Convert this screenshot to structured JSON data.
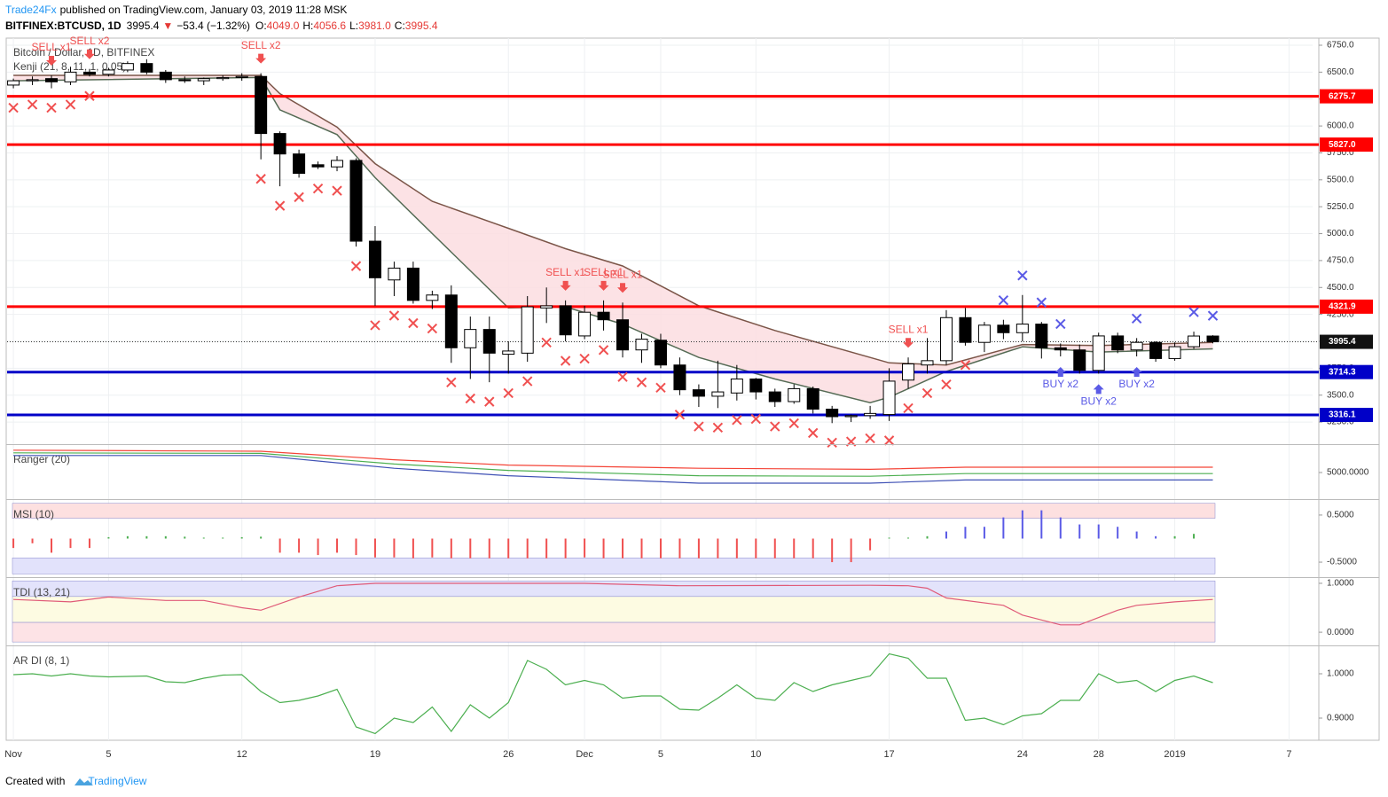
{
  "header": {
    "author": "Trade24Fx",
    "published": "published on TradingView.com, January 03, 2019 11:28 MSK",
    "symbol": "BITFINEX:BTCUSD, 1D",
    "last": "3995.4",
    "arrow": "▼",
    "change": "−53.4 (−1.32%)",
    "o_label": "O:",
    "o": "4049.0",
    "h_label": "H:",
    "h": "4056.6",
    "l_label": "L:",
    "l": "3981.0",
    "c_label": "C:",
    "c": "3995.4"
  },
  "footer": {
    "created": "Created with",
    "brand": "TradingView"
  },
  "chart_data": [
    {
      "type": "candlestick",
      "title": "Bitcoin / Dollar, 1D, BITFINEX",
      "indicator": "Kenji (21, 8, 11, 1, 0.05)",
      "xlim": [
        -0.33,
        68.24
      ],
      "xticks": [
        {
          "value": 0,
          "label": "Nov"
        },
        5,
        12,
        19,
        26,
        {
          "value": 30,
          "label": "Dec"
        },
        {
          "value": 34,
          "label": "5"
        },
        {
          "value": 39,
          "label": "10"
        },
        {
          "value": 46,
          "label": "17"
        },
        {
          "value": 53,
          "label": "24"
        },
        {
          "value": 57,
          "label": "28"
        },
        {
          "value": 61,
          "label": "2019"
        },
        {
          "value": 67,
          "label": "7"
        }
      ],
      "ylim": [
        3053,
        6816
      ],
      "yticks": [
        {
          "value": 6750,
          "label": "6750.0"
        },
        {
          "value": 6500,
          "label": "6500.0"
        },
        {
          "value": 6250,
          "label": "6250.0"
        },
        {
          "value": 6000,
          "label": "6000.0"
        },
        {
          "value": 5750,
          "label": "5750.0"
        },
        {
          "value": 5500,
          "label": "5500.0"
        },
        {
          "value": 5250,
          "label": "5250.0"
        },
        {
          "value": 5000,
          "label": "5000.0"
        },
        {
          "value": 4750,
          "label": "4750.0"
        },
        {
          "value": 4500,
          "label": "4500.0"
        },
        {
          "value": 4250,
          "label": "4250.0"
        },
        {
          "value": 4000,
          "label": "4000.0"
        },
        {
          "value": 3750,
          "label": "3750.0"
        },
        {
          "value": 3500,
          "label": "3500.0"
        },
        {
          "value": 3250,
          "label": "3250.0"
        }
      ],
      "grid": true,
      "colors": {
        "up": "#ffffff",
        "down": "#000000"
      },
      "ohlc": [
        [
          6380,
          6440,
          6350,
          6420
        ],
        [
          6420,
          6460,
          6380,
          6430
        ],
        [
          6440,
          6470,
          6350,
          6410
        ],
        [
          6410,
          6550,
          6380,
          6500
        ],
        [
          6500,
          6530,
          6460,
          6480
        ],
        [
          6480,
          6540,
          6460,
          6520
        ],
        [
          6520,
          6600,
          6500,
          6580
        ],
        [
          6580,
          6620,
          6480,
          6500
        ],
        [
          6500,
          6520,
          6400,
          6430
        ],
        [
          6430,
          6460,
          6400,
          6420
        ],
        [
          6420,
          6450,
          6380,
          6440
        ],
        [
          6440,
          6470,
          6420,
          6450
        ],
        [
          6450,
          6490,
          6420,
          6460
        ],
        [
          6460,
          6490,
          5690,
          5930
        ],
        [
          5930,
          5950,
          5440,
          5740
        ],
        [
          5740,
          5780,
          5520,
          5560
        ],
        [
          5640,
          5670,
          5600,
          5620
        ],
        [
          5620,
          5720,
          5580,
          5680
        ],
        [
          5680,
          5700,
          4880,
          4930
        ],
        [
          4930,
          5070,
          4330,
          4590
        ],
        [
          4570,
          4740,
          4420,
          4680
        ],
        [
          4680,
          4740,
          4350,
          4380
        ],
        [
          4380,
          4470,
          4300,
          4430
        ],
        [
          4430,
          4520,
          3800,
          3940
        ],
        [
          3940,
          4230,
          3650,
          4110
        ],
        [
          4110,
          4230,
          3620,
          3890
        ],
        [
          3880,
          4000,
          3700,
          3910
        ],
        [
          3890,
          4420,
          3810,
          4320
        ],
        [
          4310,
          4500,
          4170,
          4330
        ],
        [
          4330,
          4380,
          4000,
          4060
        ],
        [
          4050,
          4330,
          4020,
          4270
        ],
        [
          4270,
          4380,
          4100,
          4200
        ],
        [
          4200,
          4360,
          3850,
          3920
        ],
        [
          3920,
          4070,
          3800,
          4020
        ],
        [
          4010,
          4070,
          3750,
          3780
        ],
        [
          3780,
          3850,
          3500,
          3550
        ],
        [
          3550,
          3600,
          3390,
          3490
        ],
        [
          3490,
          3820,
          3380,
          3530
        ],
        [
          3520,
          3780,
          3450,
          3650
        ],
        [
          3650,
          3660,
          3460,
          3530
        ],
        [
          3530,
          3560,
          3390,
          3440
        ],
        [
          3440,
          3600,
          3420,
          3560
        ],
        [
          3560,
          3580,
          3330,
          3370
        ],
        [
          3370,
          3400,
          3240,
          3300
        ],
        [
          3300,
          3320,
          3250,
          3310
        ],
        [
          3310,
          3400,
          3280,
          3330
        ],
        [
          3320,
          3750,
          3260,
          3630
        ],
        [
          3640,
          3850,
          3560,
          3790
        ],
        [
          3780,
          4030,
          3700,
          3820
        ],
        [
          3820,
          4290,
          3780,
          4220
        ],
        [
          4220,
          4310,
          3960,
          3990
        ],
        [
          3990,
          4180,
          3900,
          4150
        ],
        [
          4150,
          4200,
          4020,
          4080
        ],
        [
          4080,
          4430,
          4000,
          4160
        ],
        [
          4160,
          4180,
          3840,
          3940
        ],
        [
          3940,
          3980,
          3860,
          3920
        ],
        [
          3920,
          3970,
          3700,
          3730
        ],
        [
          3730,
          4080,
          3700,
          4050
        ],
        [
          4050,
          4080,
          3890,
          3920
        ],
        [
          3920,
          4030,
          3860,
          3990
        ],
        [
          3990,
          4000,
          3810,
          3840
        ],
        [
          3840,
          3990,
          3820,
          3950
        ],
        [
          3950,
          4090,
          3930,
          4049
        ],
        [
          4049,
          4056.6,
          3981,
          3995.4
        ]
      ],
      "cloud": {
        "x": [
          0,
          13,
          14,
          17,
          19,
          22,
          26,
          29,
          32,
          36,
          40,
          45,
          46,
          49,
          53,
          57,
          63
        ],
        "upper": [
          6470,
          6470,
          6300,
          5990,
          5650,
          5300,
          5050,
          4860,
          4700,
          4330,
          4100,
          3850,
          3800,
          3780,
          3970,
          3960,
          3990
        ],
        "lower": [
          6420,
          6450,
          6150,
          5920,
          5520,
          5000,
          4310,
          4320,
          4160,
          3850,
          3650,
          3430,
          3480,
          3720,
          3950,
          3900,
          3930
        ],
        "fill": "#fcdde0",
        "upper_color": "#7b5548",
        "lower_color": "#556b55"
      },
      "levels": [
        6275.7,
        {
          "value": 5827,
          "label": "5827.0"
        },
        4321.9,
        3714.3,
        3316.1
      ],
      "level_colors": [
        "#ff0000",
        "#ff0000",
        "#ff0000",
        "#0000c8",
        "#0000c8"
      ],
      "last": 3995.4,
      "sell_signals": [
        {
          "x": 2,
          "label": "SELL x1"
        },
        {
          "x": 4,
          "label": "SELL x2"
        },
        {
          "x": 13,
          "label": "SELL x2"
        },
        {
          "x": 29,
          "label": "SELL x1"
        },
        {
          "x": 31,
          "label": "SELL x1"
        },
        {
          "x": 32,
          "label": "SELL x1"
        },
        {
          "x": 47,
          "label": "SELL x1"
        }
      ],
      "buy_signals": [
        {
          "x": 55,
          "label": "BUY x2"
        },
        {
          "x": 57,
          "label": "BUY x2"
        },
        {
          "x": 59,
          "label": "BUY x2"
        }
      ],
      "sell_color": "#f05050",
      "buy_color": "#5a5ae6",
      "sell_marks": [
        0,
        1,
        2,
        3,
        4,
        13,
        14,
        15,
        16,
        17,
        18,
        19,
        20,
        21,
        22,
        23,
        24,
        25,
        26,
        27,
        28,
        29,
        30,
        31,
        32,
        33,
        34,
        35,
        36,
        37,
        38,
        39,
        40,
        41,
        42,
        43,
        44,
        45,
        46,
        47,
        48,
        49,
        50
      ],
      "buy_marks": [
        52,
        53,
        54,
        55,
        59,
        62,
        63
      ]
    },
    {
      "type": "line",
      "title": "Ranger (20)",
      "ylim": [
        2500,
        7500
      ],
      "yticks": [
        {
          "value": 5000,
          "label": "5000.0000"
        }
      ],
      "x": [
        0,
        13,
        20,
        26,
        36,
        45,
        50,
        63
      ],
      "series": [
        {
          "color": "#f44336",
          "values": [
            7100,
            7000,
            6200,
            5700,
            5400,
            5300,
            5500,
            5500
          ]
        },
        {
          "color": "#4caf50",
          "values": [
            6850,
            6800,
            5800,
            5200,
            4700,
            4650,
            4900,
            4900
          ]
        },
        {
          "color": "#3f51b5",
          "values": [
            6600,
            6600,
            5400,
            4700,
            4000,
            4000,
            4300,
            4300
          ]
        }
      ]
    },
    {
      "type": "histogram",
      "title": "MSI (10)",
      "ylim": [
        -0.8,
        0.8
      ],
      "yticks": [
        {
          "value": 0.5,
          "label": "0.5000"
        },
        {
          "value": -0.5,
          "label": "-0.5000"
        }
      ],
      "zones": [
        {
          "range": [
            0.43,
            0.75
          ],
          "color": "#fde0e0"
        },
        {
          "range": [
            -0.75,
            -0.41
          ],
          "color": "#e2e2fb"
        }
      ],
      "values": [
        -0.2,
        -0.1,
        -0.3,
        -0.2,
        -0.2,
        0.03,
        0.05,
        0.05,
        0.05,
        0.04,
        0.02,
        0.02,
        0.03,
        0.04,
        -0.3,
        -0.3,
        -0.35,
        -0.3,
        -0.35,
        -0.4,
        -0.4,
        -0.42,
        -0.4,
        -0.42,
        -0.42,
        -0.42,
        -0.42,
        -0.42,
        -0.42,
        -0.42,
        -0.4,
        -0.42,
        -0.42,
        -0.42,
        -0.42,
        -0.42,
        -0.42,
        -0.42,
        -0.42,
        -0.42,
        -0.42,
        -0.42,
        -0.42,
        -0.5,
        -0.5,
        -0.25,
        0.02,
        0.02,
        0.05,
        0.15,
        0.25,
        0.25,
        0.45,
        0.6,
        0.6,
        0.45,
        0.3,
        0.3,
        0.25,
        0.15,
        0.05,
        0.05,
        0.1,
        null
      ],
      "colors": [
        "#f05050",
        "#f05050",
        "#f05050",
        "#f05050",
        "#f05050",
        "#4caf50",
        "#4caf50",
        "#4caf50",
        "#4caf50",
        "#4caf50",
        "#4caf50",
        "#4caf50",
        "#4caf50",
        "#4caf50",
        "#f05050",
        "#f05050",
        "#f05050",
        "#f05050",
        "#f05050",
        "#f05050",
        "#f05050",
        "#f05050",
        "#f05050",
        "#f05050",
        "#f05050",
        "#f05050",
        "#f05050",
        "#f05050",
        "#f05050",
        "#f05050",
        "#f05050",
        "#f05050",
        "#f05050",
        "#f05050",
        "#f05050",
        "#f05050",
        "#f05050",
        "#f05050",
        "#f05050",
        "#f05050",
        "#f05050",
        "#f05050",
        "#f05050",
        "#f05050",
        "#f05050",
        "#f05050",
        "#4caf50",
        "#4caf50",
        "#4caf50",
        "#5a5ae6",
        "#5a5ae6",
        "#5a5ae6",
        "#5a5ae6",
        "#5a5ae6",
        "#5a5ae6",
        "#5a5ae6",
        "#5a5ae6",
        "#5a5ae6",
        "#5a5ae6",
        "#5a5ae6",
        "#5a5ae6",
        "#4caf50",
        "#4caf50",
        null
      ]
    },
    {
      "type": "line",
      "title": "TDI (13, 21)",
      "ylim": [
        -0.27,
        1.09
      ],
      "yticks": [
        {
          "value": 1,
          "label": "1.0000"
        },
        {
          "value": 0,
          "label": "0.0000"
        }
      ],
      "zones": [
        {
          "range": [
            0.73,
            1.05
          ],
          "color": "#e3e3fb"
        },
        {
          "range": [
            0.2,
            0.73
          ],
          "color": "#fdfbe2"
        },
        {
          "range": [
            -0.2,
            0.2
          ],
          "color": "#fde3e6"
        }
      ],
      "x": [
        0,
        3,
        5,
        8,
        10,
        12,
        13,
        15,
        17,
        19,
        30,
        35,
        45,
        47,
        48,
        49,
        52,
        53,
        55,
        56,
        57,
        58,
        59,
        61,
        63
      ],
      "series": [
        {
          "color": "#e05a78",
          "values": [
            0.67,
            0.62,
            0.72,
            0.65,
            0.65,
            0.5,
            0.45,
            0.72,
            0.95,
            1,
            1,
            0.95,
            0.96,
            0.95,
            0.9,
            0.7,
            0.55,
            0.35,
            0.15,
            0.15,
            0.3,
            0.45,
            0.55,
            0.62,
            0.67
          ]
        }
      ]
    },
    {
      "type": "line",
      "title": "AR DI (8, 1)",
      "ylim": [
        0.85,
        1.06
      ],
      "yticks": [
        {
          "value": 1,
          "label": "1.0000"
        },
        {
          "value": 0.9,
          "label": "0.9000"
        }
      ],
      "series": [
        {
          "color": "#4caf50",
          "values": [
            0.998,
            1,
            0.995,
            1,
            0.995,
            0.993,
            0.994,
            0.995,
            0.982,
            0.98,
            0.99,
            0.997,
            0.998,
            0.96,
            0.935,
            0.94,
            0.95,
            0.965,
            0.88,
            0.865,
            0.9,
            0.89,
            0.925,
            0.87,
            0.93,
            0.9,
            0.935,
            1.03,
            1.01,
            0.975,
            0.985,
            0.975,
            0.945,
            0.95,
            0.95,
            0.92,
            0.918,
            0.945,
            0.975,
            0.945,
            0.94,
            0.98,
            0.96,
            0.975,
            0.985,
            0.995,
            1.045,
            1.035,
            0.99,
            0.99,
            0.895,
            0.9,
            0.885,
            0.905,
            0.91,
            0.94,
            0.94,
            1,
            0.98,
            0.985,
            0.96,
            0.985,
            0.995,
            0.98
          ]
        }
      ]
    }
  ]
}
